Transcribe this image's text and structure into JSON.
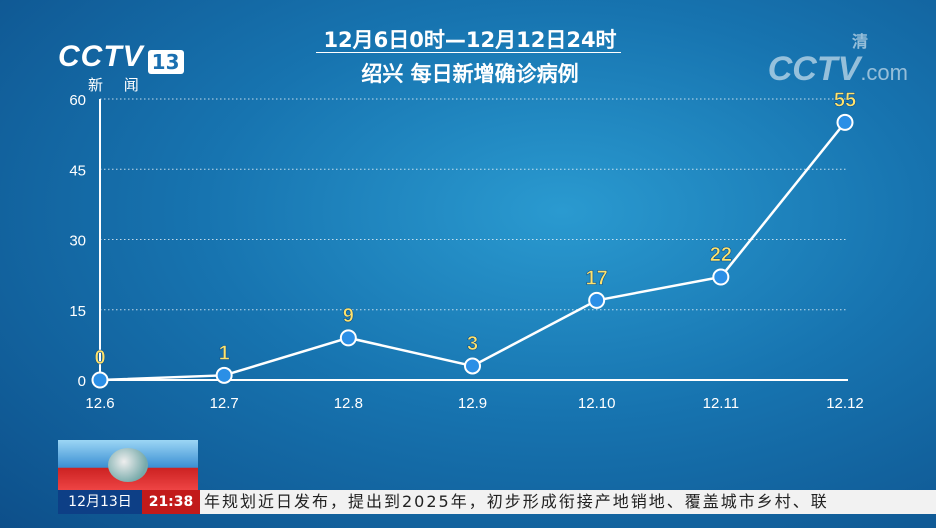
{
  "logo": {
    "brand": "CCTV",
    "channel": "13",
    "subtitle": "新 闻"
  },
  "watermark": {
    "brand": "CCTV",
    "suffix": ".com",
    "tag": "清"
  },
  "chart_data": {
    "type": "line",
    "title": "12月6日0时—12月12日24时",
    "subtitle": "绍兴  每日新增确诊病例",
    "categories": [
      "12.6",
      "12.7",
      "12.8",
      "12.9",
      "12.10",
      "12.11",
      "12.12"
    ],
    "values": [
      0,
      1,
      9,
      3,
      17,
      22,
      55
    ],
    "ylim": [
      0,
      60
    ],
    "yticks": [
      0,
      15,
      30,
      45,
      60
    ],
    "xlabel": "",
    "ylabel": "",
    "grid": true,
    "colors": {
      "line": "#ffffff",
      "marker": "#2b8fe6",
      "label": "#ffe36b"
    }
  },
  "ticker": {
    "date": "12月13日",
    "time": "21:38",
    "text": "年规划近日发布，提出到2025年，初步形成衔接产地销地、覆盖城市乡村、联"
  }
}
